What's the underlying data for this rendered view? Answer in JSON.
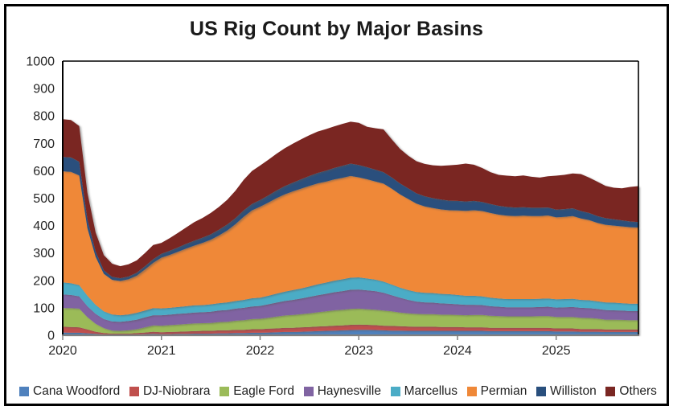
{
  "title": "US Rig Count by Major Basins",
  "axes": {
    "y_ticks": [
      0,
      100,
      200,
      300,
      400,
      500,
      600,
      700,
      800,
      900,
      1000
    ],
    "x_ticks": [
      2020,
      2021,
      2022,
      2023,
      2024,
      2025
    ],
    "y_range": [
      0,
      1000
    ],
    "x_range": [
      2020,
      2025.8333
    ]
  },
  "frame_colors": {
    "plot_border": "#000000",
    "category_axis": "#7f7f7f",
    "text": "#262626"
  },
  "chart_data": {
    "type": "area",
    "stacked": true,
    "title": "US Rig Count by Major Basins",
    "x_start_year": 2020,
    "x_interval": "month",
    "points": 71,
    "xlim": [
      2020,
      2025.8333
    ],
    "ylim": [
      0,
      1000
    ],
    "x_ticks": [
      2020,
      2021,
      2022,
      2023,
      2024,
      2025
    ],
    "y_ticks": [
      0,
      100,
      200,
      300,
      400,
      500,
      600,
      700,
      800,
      900,
      1000
    ],
    "grid": false,
    "legend_position": "bottom",
    "series": [
      {
        "name": "Cana Woodford",
        "color": "#4F81BD",
        "values": [
          10,
          9,
          9,
          7,
          5,
          3,
          2,
          2,
          2,
          3,
          4,
          5,
          4,
          4,
          5,
          5,
          6,
          6,
          6,
          7,
          7,
          8,
          8,
          9,
          9,
          10,
          11,
          12,
          12,
          13,
          14,
          15,
          16,
          17,
          18,
          19,
          20,
          20,
          19,
          18,
          17,
          17,
          16,
          16,
          16,
          16,
          16,
          16,
          16,
          16,
          16,
          16,
          15,
          15,
          15,
          15,
          15,
          15,
          15,
          15,
          14,
          14,
          14,
          13,
          13,
          13,
          12,
          12,
          12,
          12,
          12
        ]
      },
      {
        "name": "DJ-Niobrara",
        "color": "#C0504D",
        "values": [
          21,
          21,
          20,
          14,
          8,
          5,
          4,
          4,
          4,
          5,
          6,
          8,
          7,
          8,
          8,
          9,
          9,
          10,
          10,
          11,
          11,
          12,
          12,
          13,
          13,
          14,
          14,
          15,
          15,
          16,
          16,
          17,
          17,
          18,
          18,
          19,
          19,
          18,
          18,
          17,
          17,
          16,
          16,
          15,
          15,
          15,
          14,
          14,
          14,
          13,
          13,
          13,
          12,
          12,
          12,
          12,
          12,
          12,
          12,
          12,
          11,
          11,
          11,
          10,
          10,
          10,
          9,
          9,
          9,
          9,
          9
        ]
      },
      {
        "name": "Eagle Ford",
        "color": "#9BBB59",
        "values": [
          68,
          69,
          68,
          45,
          29,
          18,
          11,
          10,
          12,
          14,
          19,
          23,
          24,
          25,
          26,
          27,
          28,
          28,
          29,
          30,
          31,
          33,
          35,
          37,
          38,
          40,
          43,
          45,
          47,
          48,
          50,
          52,
          54,
          56,
          57,
          58,
          58,
          57,
          56,
          55,
          53,
          50,
          48,
          47,
          46,
          46,
          45,
          45,
          44,
          44,
          45,
          45,
          44,
          43,
          42,
          42,
          42,
          42,
          43,
          43,
          42,
          42,
          42,
          41,
          40,
          38,
          36,
          36,
          35,
          34,
          34
        ]
      },
      {
        "name": "Haynesville",
        "color": "#8064A2",
        "values": [
          50,
          48,
          45,
          40,
          36,
          33,
          33,
          33,
          34,
          35,
          36,
          37,
          38,
          38,
          39,
          39,
          40,
          40,
          41,
          42,
          43,
          44,
          45,
          46,
          47,
          49,
          51,
          53,
          55,
          57,
          60,
          62,
          64,
          66,
          68,
          70,
          70,
          69,
          68,
          65,
          59,
          54,
          49,
          45,
          43,
          42,
          41,
          40,
          39,
          38,
          37,
          36,
          35,
          34,
          33,
          33,
          33,
          33,
          33,
          34,
          34,
          35,
          36,
          36,
          36,
          35,
          35,
          34,
          34,
          33,
          33
        ]
      },
      {
        "name": "Marcellus",
        "color": "#4BACC6",
        "values": [
          44,
          43,
          41,
          38,
          33,
          28,
          26,
          24,
          24,
          25,
          25,
          26,
          25,
          25,
          25,
          26,
          26,
          26,
          27,
          27,
          28,
          28,
          29,
          30,
          30,
          31,
          33,
          34,
          36,
          37,
          38,
          40,
          41,
          42,
          43,
          44,
          44,
          43,
          42,
          41,
          39,
          37,
          36,
          35,
          35,
          35,
          35,
          35,
          34,
          33,
          33,
          32,
          31,
          30,
          30,
          30,
          30,
          30,
          30,
          30,
          30,
          30,
          30,
          29,
          29,
          28,
          28,
          28,
          27,
          27,
          27
        ]
      },
      {
        "name": "Permian",
        "color": "#EF8838",
        "values": [
          405,
          406,
          400,
          246,
          175,
          137,
          126,
          125,
          128,
          135,
          150,
          165,
          185,
          193,
          201,
          210,
          218,
          227,
          235,
          247,
          262,
          280,
          303,
          320,
          332,
          340,
          348,
          355,
          360,
          364,
          367,
          368,
          368,
          369,
          370,
          371,
          365,
          362,
          358,
          357,
          350,
          340,
          332,
          322,
          315,
          310,
          308,
          306,
          308,
          310,
          312,
          311,
          309,
          306,
          304,
          303,
          304,
          303,
          302,
          303,
          299,
          300,
          302,
          297,
          292,
          286,
          283,
          281,
          280,
          279,
          278
        ]
      },
      {
        "name": "Williston",
        "color": "#294F7D",
        "values": [
          52,
          53,
          50,
          33,
          20,
          13,
          11,
          10,
          10,
          11,
          12,
          13,
          14,
          15,
          16,
          17,
          18,
          19,
          20,
          21,
          22,
          22,
          23,
          24,
          24,
          26,
          28,
          30,
          32,
          34,
          36,
          38,
          40,
          42,
          44,
          45,
          45,
          44,
          43,
          42,
          41,
          40,
          39,
          38,
          37,
          36,
          36,
          35,
          35,
          34,
          34,
          33,
          33,
          32,
          32,
          31,
          31,
          30,
          30,
          29,
          28,
          28,
          28,
          27,
          26,
          25,
          24,
          23,
          22,
          21,
          20
        ]
      },
      {
        "name": "Others",
        "color": "#7A2723",
        "values": [
          138,
          136,
          130,
          97,
          69,
          55,
          48,
          44,
          45,
          45,
          48,
          52,
          40,
          46,
          53,
          60,
          68,
          72,
          78,
          83,
          90,
          100,
          112,
          120,
          126,
          130,
          134,
          138,
          142,
          146,
          149,
          151,
          152,
          152,
          153,
          153,
          154,
          147,
          151,
          156,
          139,
          126,
          119,
          117,
          118,
          120,
          123,
          129,
          132,
          138,
          132,
          124,
          116,
          113,
          114,
          114,
          116,
          113,
          110,
          114,
          124,
          125,
          127,
          135,
          129,
          125,
          118,
          115,
          117,
          126,
          131
        ]
      }
    ]
  }
}
